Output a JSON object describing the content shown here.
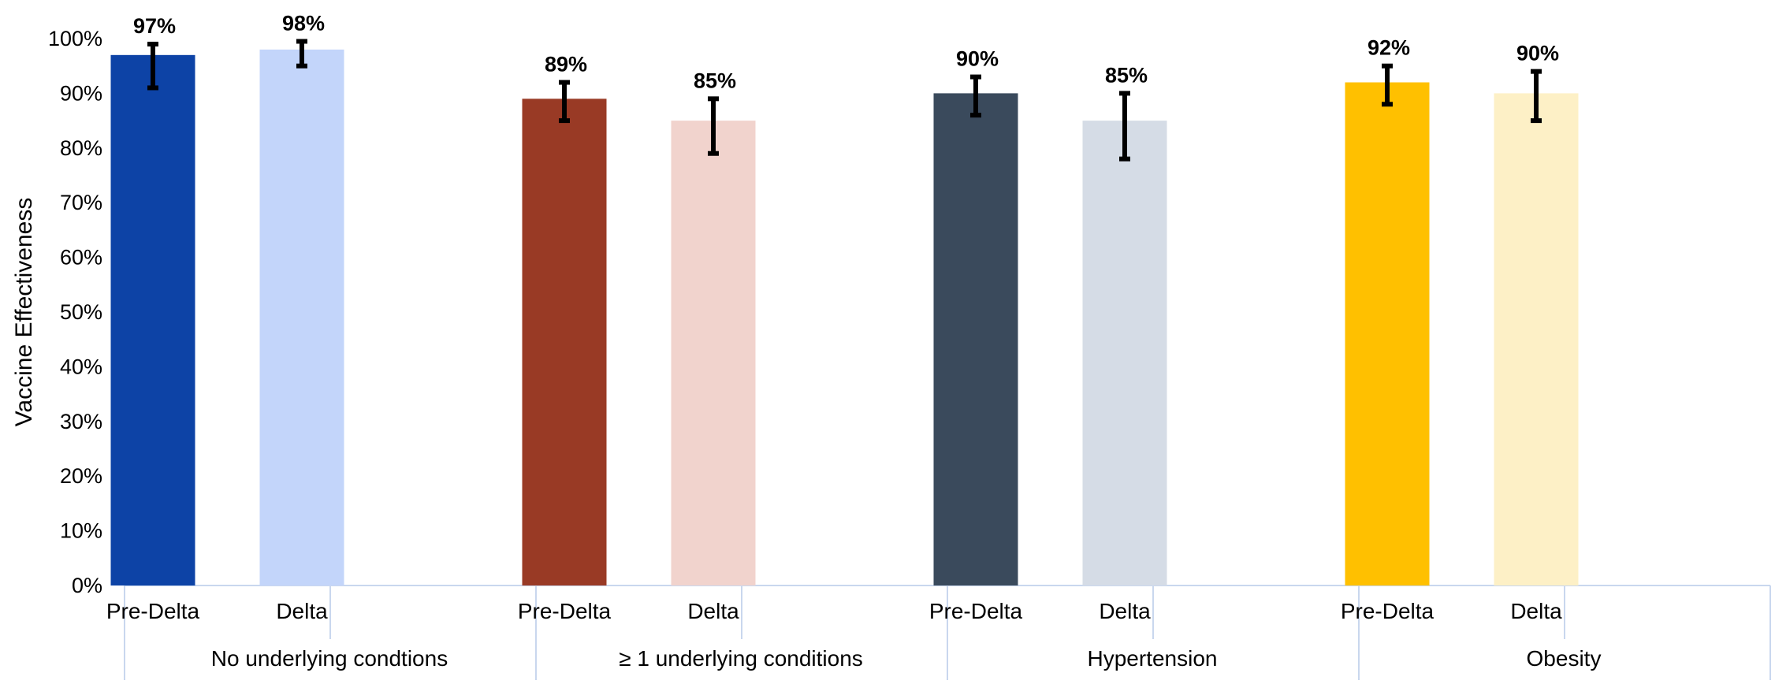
{
  "chart_data": {
    "type": "bar",
    "ylabel": "Vaccine Effectiveness",
    "xlabel": "",
    "ylim": [
      0,
      100
    ],
    "yticks": [
      0,
      10,
      20,
      30,
      40,
      50,
      60,
      70,
      80,
      90,
      100
    ],
    "y_tick_suffix": "%",
    "grid": false,
    "legend": "none",
    "groups": [
      {
        "name": "No underlying condtions",
        "bars": [
          {
            "category": "Pre-Delta",
            "value": 97,
            "label": "97%",
            "ci_low": 91,
            "ci_high": 99,
            "color": "#0D43A6"
          },
          {
            "category": "Delta",
            "value": 98,
            "label": "98%",
            "ci_low": 95,
            "ci_high": 99.5,
            "color": "#C3D5FA"
          }
        ]
      },
      {
        "name": "≥ 1 underlying conditions",
        "bars": [
          {
            "category": "Pre-Delta",
            "value": 89,
            "label": "89%",
            "ci_low": 85,
            "ci_high": 92,
            "color": "#993A25"
          },
          {
            "category": "Delta",
            "value": 85,
            "label": "85%",
            "ci_low": 79,
            "ci_high": 89,
            "color": "#F1D3CD"
          }
        ]
      },
      {
        "name": "Hypertension",
        "bars": [
          {
            "category": "Pre-Delta",
            "value": 90,
            "label": "90%",
            "ci_low": 86,
            "ci_high": 93,
            "color": "#3A4A5C"
          },
          {
            "category": "Delta",
            "value": 85,
            "label": "85%",
            "ci_low": 78,
            "ci_high": 90,
            "color": "#D5DCE6"
          }
        ]
      },
      {
        "name": "Obesity",
        "bars": [
          {
            "category": "Pre-Delta",
            "value": 92,
            "label": "92%",
            "ci_low": 88,
            "ci_high": 95,
            "color": "#FFC000"
          },
          {
            "category": "Delta",
            "value": 90,
            "label": "90%",
            "ci_low": 85,
            "ci_high": 94,
            "color": "#FDF0C6"
          }
        ]
      }
    ]
  },
  "colors": {
    "axis_line": "#C9D7EE",
    "error_bar": "#000000"
  }
}
